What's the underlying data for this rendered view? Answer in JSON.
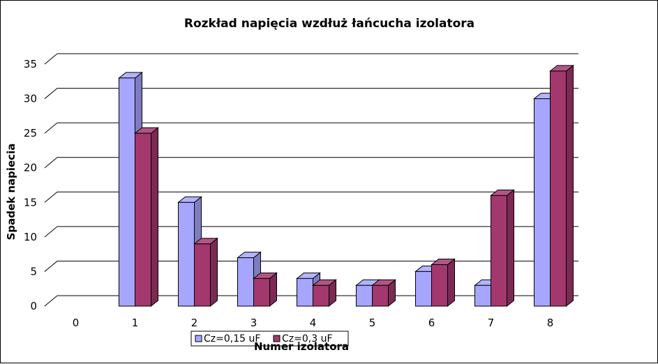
{
  "chart_data": {
    "type": "bar",
    "title": "Rozkład napięcia wzdłuż łańcucha izolatora",
    "xlabel": "Numer izolatora",
    "ylabel": "Spadek napiecia",
    "categories": [
      "0",
      "1",
      "2",
      "3",
      "4",
      "5",
      "6",
      "7",
      "8"
    ],
    "series": [
      {
        "name": "Cz=0,15 uF",
        "values": [
          0,
          33,
          15,
          7,
          4,
          3,
          5,
          3,
          30
        ],
        "color": "#a6a6ff"
      },
      {
        "name": "Cz=0,3 uF",
        "values": [
          0,
          25,
          9,
          4,
          3,
          3,
          6,
          16,
          34
        ],
        "color": "#a3386e"
      }
    ],
    "ylim": [
      0,
      35
    ],
    "yticks": [
      "0",
      "5",
      "10",
      "15",
      "20",
      "25",
      "30",
      "35"
    ],
    "grid": true,
    "three_d": true,
    "legend_position": "bottom"
  }
}
